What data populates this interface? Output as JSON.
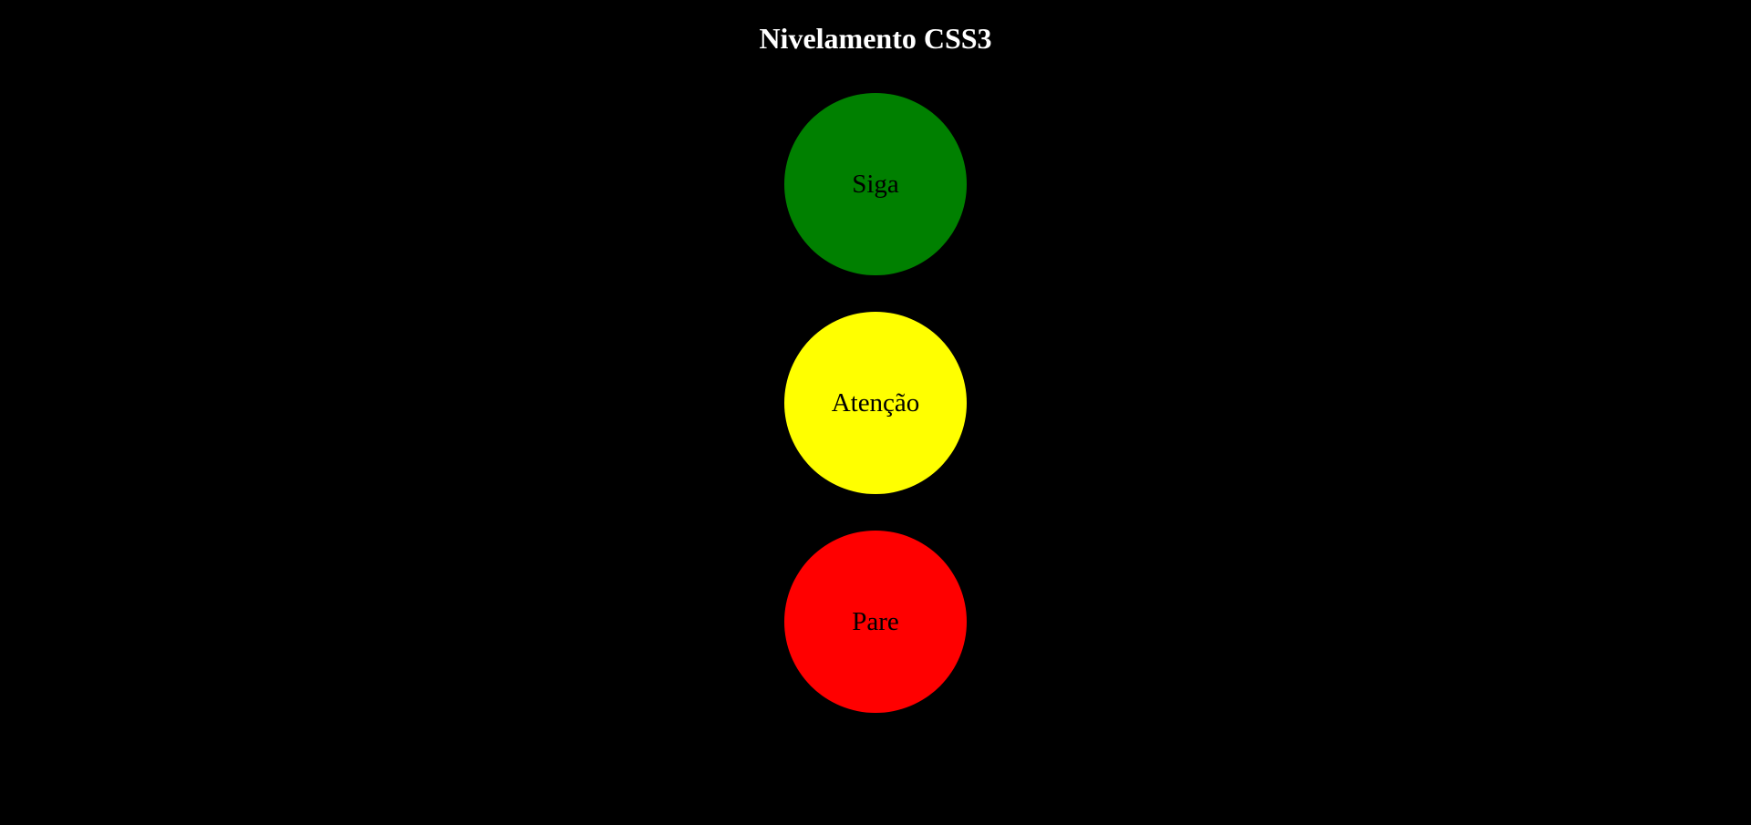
{
  "page": {
    "title": "Nivelamento CSS3",
    "background_color": "#000000",
    "title_color": "#ffffff"
  },
  "traffic_light": {
    "lights": [
      {
        "label": "Siga",
        "color": "#008000"
      },
      {
        "label": "Atenção",
        "color": "#ffff00"
      },
      {
        "label": "Pare",
        "color": "#ff0000"
      }
    ],
    "label_color": "#000000"
  }
}
